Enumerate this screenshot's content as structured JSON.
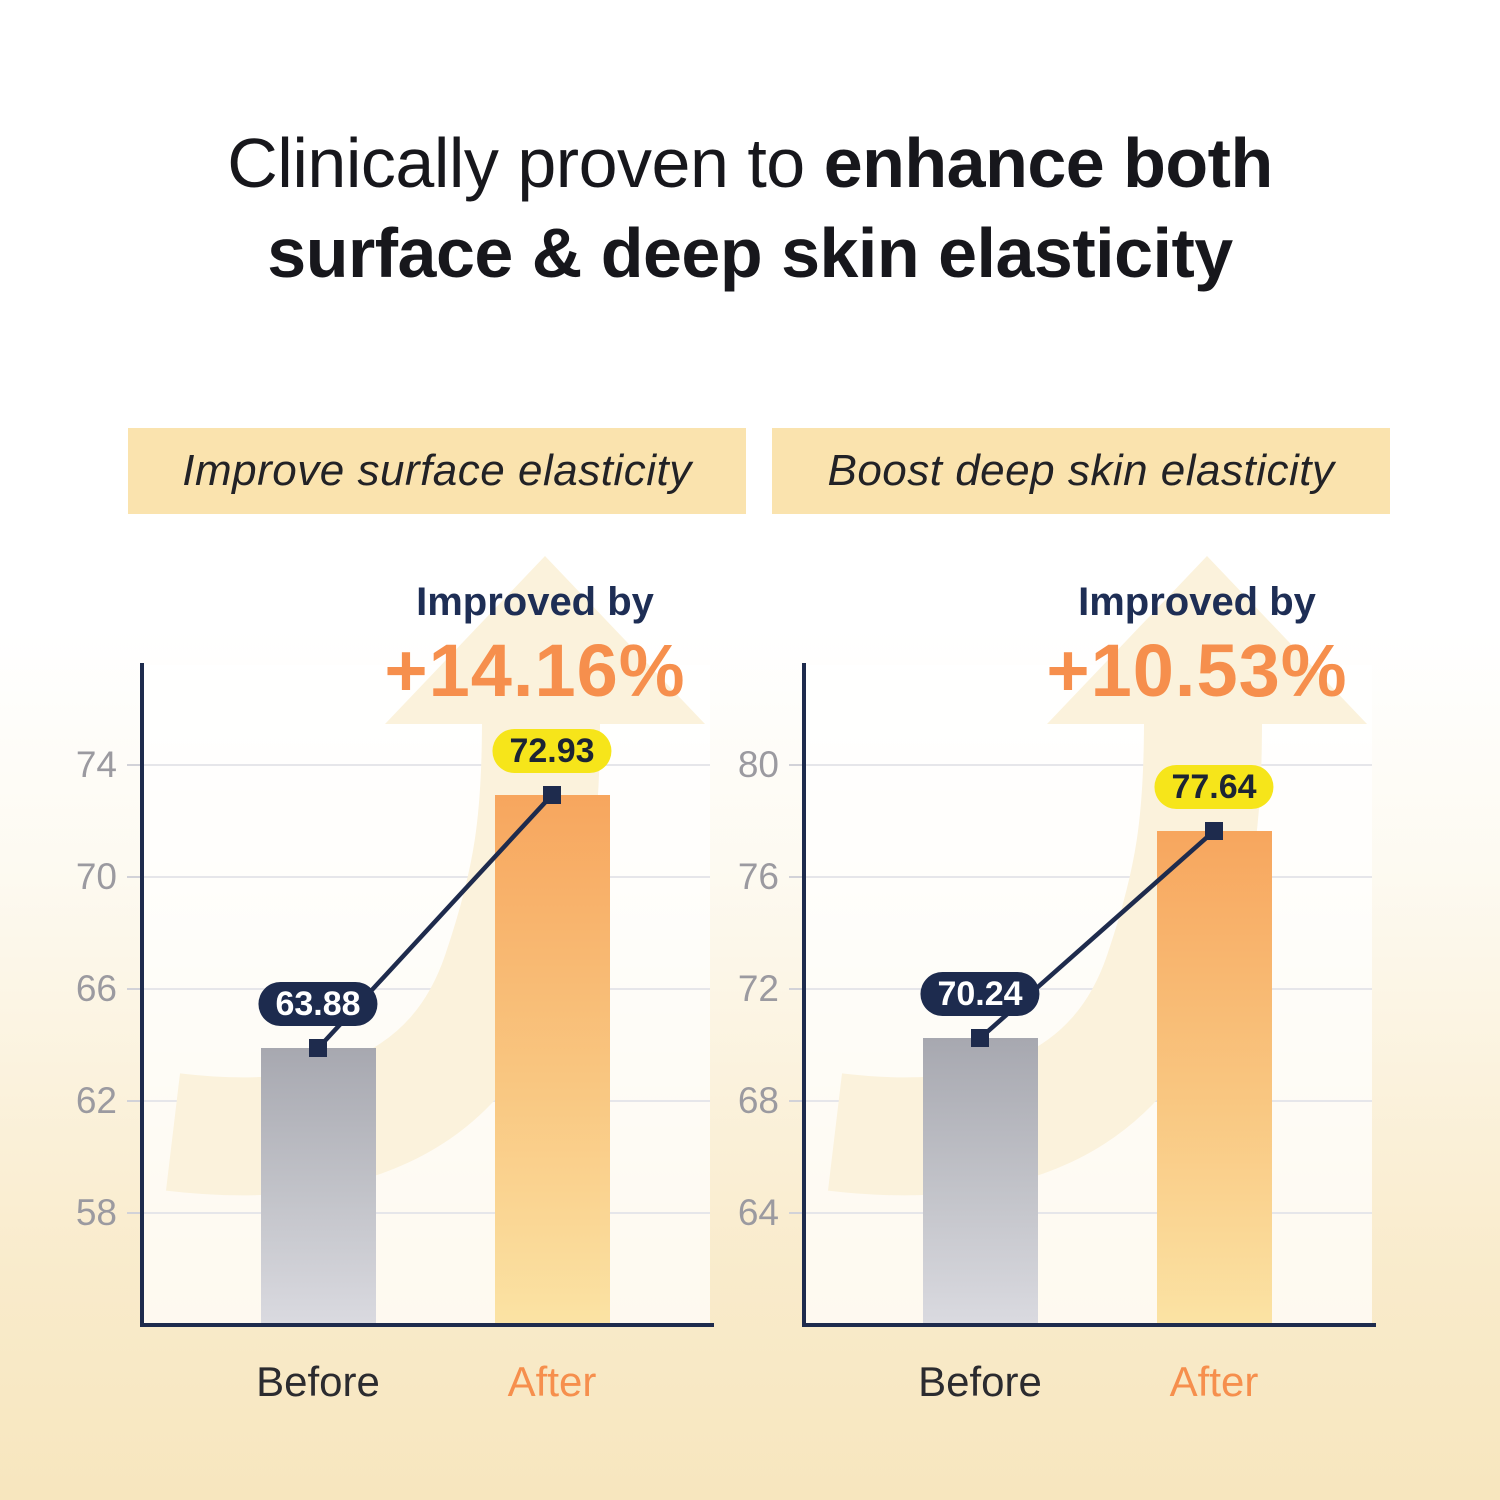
{
  "page": {
    "background_top": "#FFFFFF",
    "background_bottom": "#F7E6BE"
  },
  "title": {
    "line1_regular": "Clinically proven to ",
    "line1_bold": "enhance both",
    "line2_bold": "surface & deep skin elasticity"
  },
  "colors": {
    "navy": "#1E2B4D",
    "orange_accent": "#F68F4D",
    "yellow_pill": "#F6E51A",
    "banner_bg": "#FAE3AE",
    "gray_bar_top": "#A7A8B0",
    "gray_bar_bottom": "#DADAE0",
    "orange_bar_top": "#F7A65E",
    "orange_bar_bottom": "#FBE3A4",
    "tick_label": "#9B9AA0",
    "gridline": "#E6E6EA",
    "title_text": "#17171C",
    "arrow_fill": "#FBF2DC"
  },
  "chart_data": [
    {
      "type": "bar",
      "title": "Improve surface elasticity",
      "improved_label": "Improved by",
      "improved_value": "+14.16%",
      "categories": [
        "Before",
        "After"
      ],
      "values": [
        63.88,
        72.93
      ],
      "value_labels": [
        "63.88",
        "72.93"
      ],
      "y_ticks": [
        74,
        70,
        66,
        62,
        58
      ],
      "y_min": 54,
      "y_max": 77.57,
      "ylim": [
        54,
        77.57
      ],
      "grid": true,
      "legend_position": "none",
      "xlabel": "",
      "ylabel": ""
    },
    {
      "type": "bar",
      "title": "Boost deep skin elasticity",
      "improved_label": "Improved by",
      "improved_value": "+10.53%",
      "categories": [
        "Before",
        "After"
      ],
      "values": [
        70.24,
        77.64
      ],
      "value_labels": [
        "70.24",
        "77.64"
      ],
      "y_ticks": [
        80,
        76,
        72,
        68,
        64
      ],
      "y_min": 60,
      "y_max": 83.57,
      "ylim": [
        60,
        83.57
      ],
      "grid": true,
      "legend_position": "none",
      "xlabel": "",
      "ylabel": ""
    }
  ]
}
